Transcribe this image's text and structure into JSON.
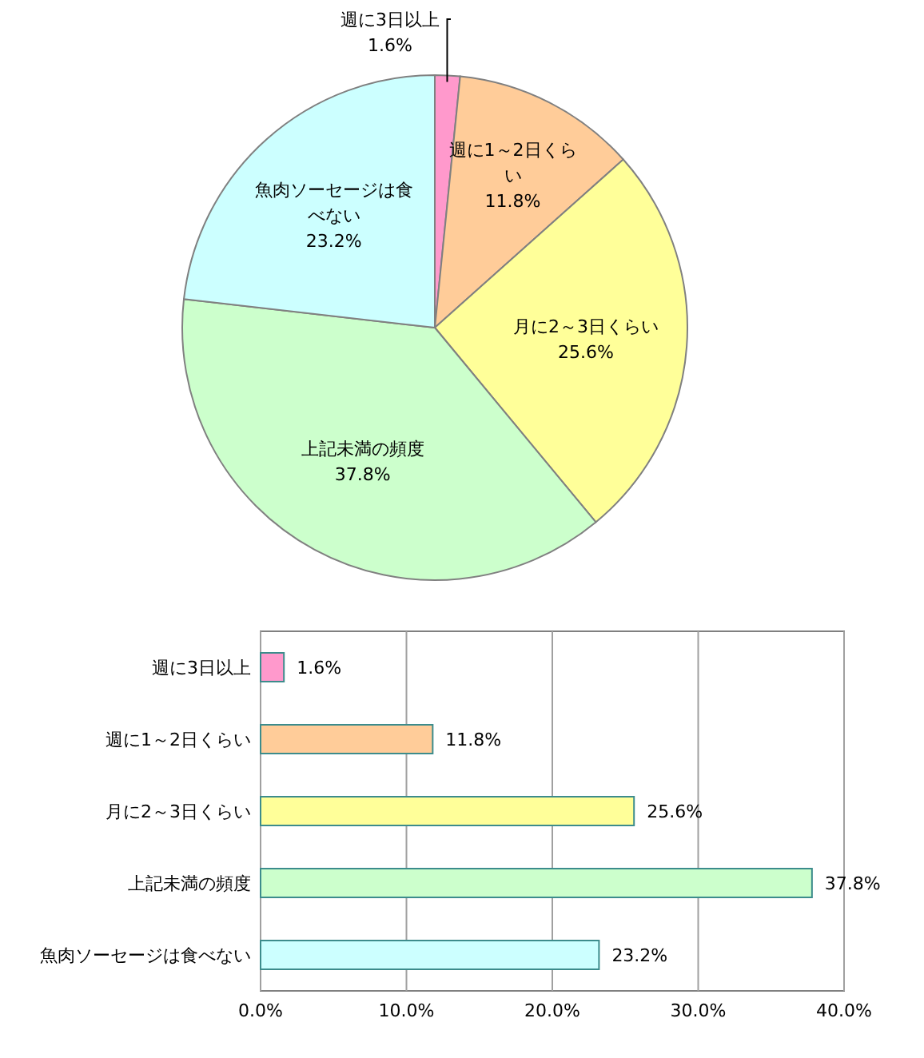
{
  "chart_data": [
    {
      "type": "pie",
      "categories": [
        "週に3日以上",
        "週に1～2日くらい",
        "月に2～3日くらい",
        "上記未満の頻度",
        "魚肉ソーセージは食べない"
      ],
      "values": [
        1.6,
        11.8,
        25.6,
        37.8,
        23.2
      ],
      "colors": [
        "#ff99cc",
        "#ffcc99",
        "#ffff99",
        "#ccffcc",
        "#ccffff"
      ],
      "value_labels": [
        "1.6%",
        "11.8%",
        "25.6%",
        "37.8%",
        "23.2%"
      ]
    },
    {
      "type": "bar",
      "orientation": "horizontal",
      "categories": [
        "週に3日以上",
        "週に1～2日くらい",
        "月に2～3日くらい",
        "上記未満の頻度",
        "魚肉ソーセージは食べない"
      ],
      "values": [
        1.6,
        11.8,
        25.6,
        37.8,
        23.2
      ],
      "colors": [
        "#ff99cc",
        "#ffcc99",
        "#ffff99",
        "#ccffcc",
        "#ccffff"
      ],
      "value_labels": [
        "1.6%",
        "11.8%",
        "25.6%",
        "37.8%",
        "23.2%"
      ],
      "xlim": [
        0,
        40
      ],
      "xticks": [
        {
          "value": 0,
          "label": "0.0%"
        },
        {
          "value": 10,
          "label": "10.0%"
        },
        {
          "value": 20,
          "label": "20.0%"
        },
        {
          "value": 30,
          "label": "30.0%"
        },
        {
          "value": 40,
          "label": "40.0%"
        }
      ],
      "grid": "x"
    }
  ]
}
